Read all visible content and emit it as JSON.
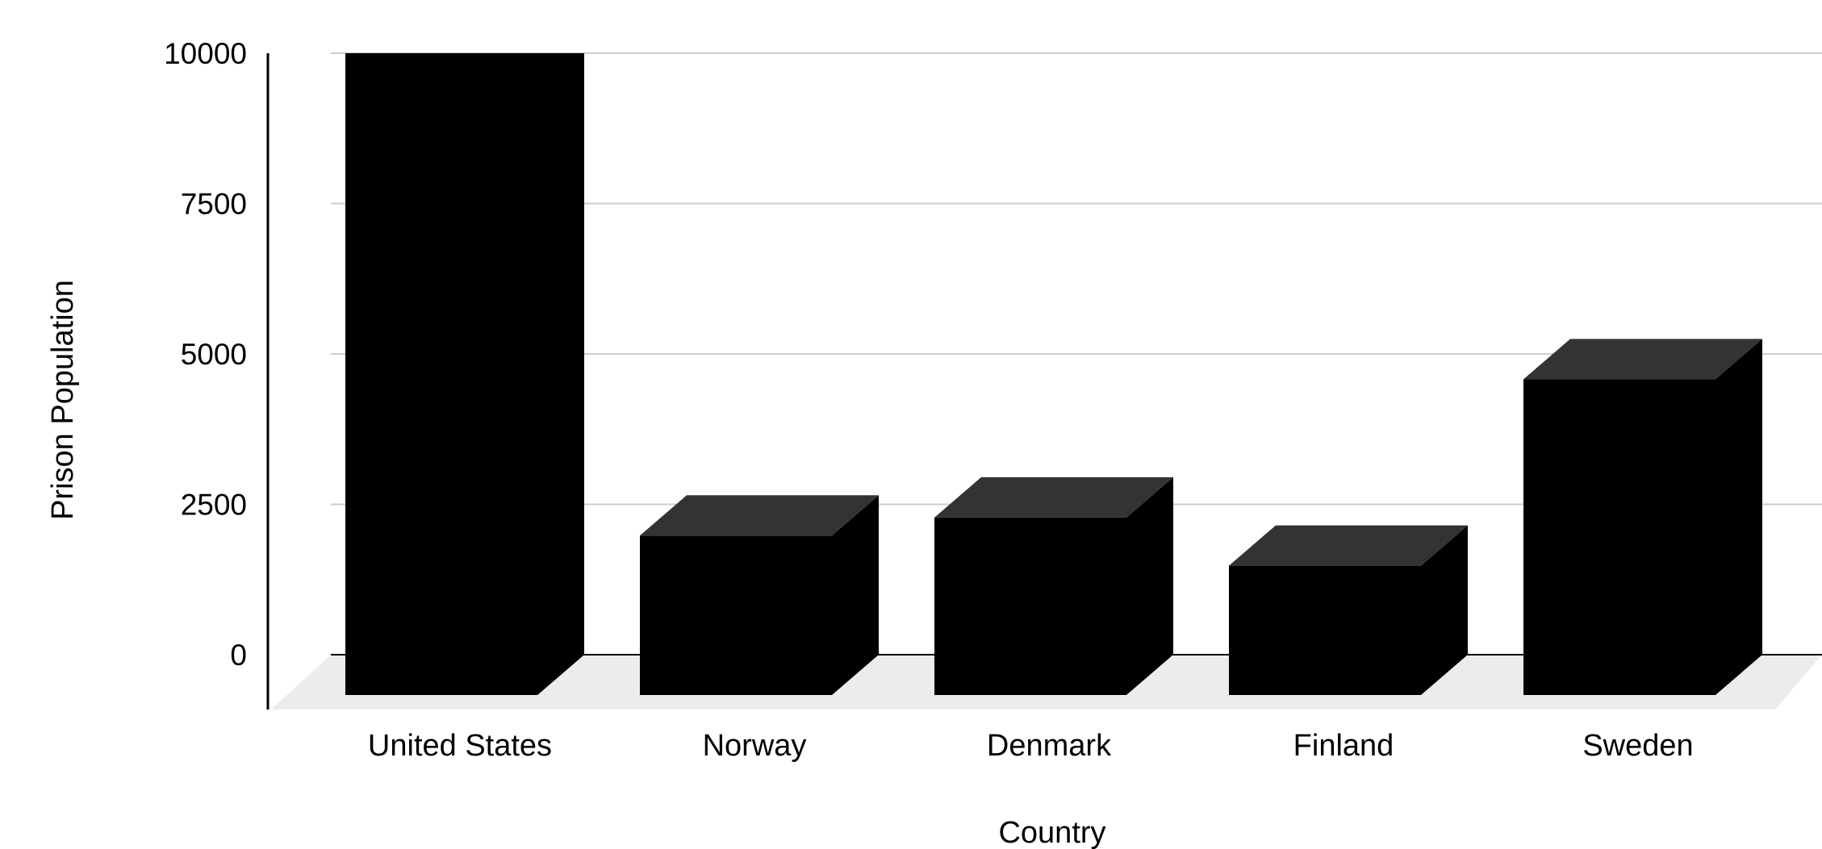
{
  "chart_data": {
    "type": "bar",
    "style": "3d",
    "categories": [
      "United States",
      "Norway",
      "Denmark",
      "Finland",
      "Sweden"
    ],
    "values": [
      10000,
      2650,
      2950,
      2150,
      5250
    ],
    "xlabel": "Country",
    "ylabel": "Prison Population",
    "ylim": [
      0,
      10000
    ],
    "yticks": [
      "10000",
      "7500",
      "5000",
      "2500",
      "0"
    ],
    "grid": true,
    "legend": "none",
    "colors": {
      "bar_front": "#000000",
      "bar_top": "#333333",
      "floor": "#ececec",
      "grid": "#cccccc",
      "axis": "#000000"
    }
  }
}
